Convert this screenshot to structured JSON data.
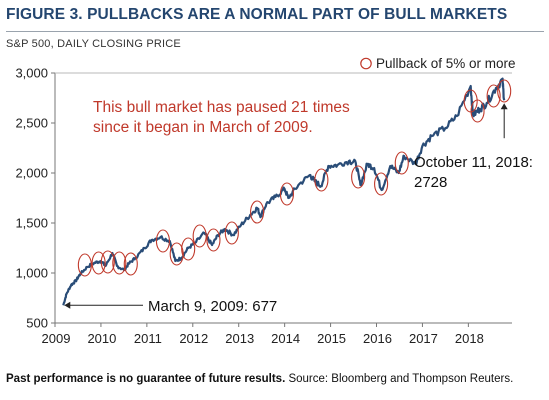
{
  "title": "FIGURE 3. PULLBACKS ARE A NORMAL PART OF BULL MARKETS",
  "subtitle": "S&P 500, DAILY CLOSING PRICE",
  "legend": {
    "label": "Pullback of 5% or more",
    "marker": "circle-outline"
  },
  "footer": {
    "disclaimer": "Past performance is no guarantee of future results.",
    "source": "Source: Bloomberg and Thompson Reuters."
  },
  "colors": {
    "title": "#24466f",
    "line": "#2a4d78",
    "annotation": "#c0392b",
    "marker": "#c0392b"
  },
  "chart_data": {
    "type": "line",
    "title": "FIGURE 3. PULLBACKS ARE A NORMAL PART OF BULL MARKETS",
    "ylabel": "S&P 500, DAILY CLOSING PRICE",
    "xlabel": "",
    "ylim": [
      500,
      3000
    ],
    "yticks": [
      500,
      1000,
      1500,
      2000,
      2500,
      3000
    ],
    "ytick_labels": [
      "500",
      "1,000",
      "1,500",
      "2,000",
      "2,500",
      "3,000"
    ],
    "xlim": [
      2009.0,
      2018.95
    ],
    "xticks": [
      2009,
      2010,
      2011,
      2012,
      2013,
      2014,
      2015,
      2016,
      2017,
      2018
    ],
    "xtick_labels": [
      "2009",
      "2010",
      "2011",
      "2012",
      "2013",
      "2014",
      "2015",
      "2016",
      "2017",
      "2018"
    ],
    "grid": false,
    "legend_position": "top-right",
    "series": [
      {
        "points": [
          [
            2009.18,
            677
          ],
          [
            2009.25,
            790
          ],
          [
            2009.35,
            880
          ],
          [
            2009.45,
            920
          ],
          [
            2009.55,
            990
          ],
          [
            2009.7,
            1060
          ],
          [
            2009.85,
            1100
          ],
          [
            2010.0,
            1120
          ],
          [
            2010.1,
            1070
          ],
          [
            2010.25,
            1200
          ],
          [
            2010.35,
            1070
          ],
          [
            2010.5,
            1030
          ],
          [
            2010.6,
            1090
          ],
          [
            2010.75,
            1150
          ],
          [
            2010.95,
            1250
          ],
          [
            2011.1,
            1330
          ],
          [
            2011.3,
            1360
          ],
          [
            2011.5,
            1320
          ],
          [
            2011.62,
            1120
          ],
          [
            2011.75,
            1150
          ],
          [
            2011.9,
            1250
          ],
          [
            2012.05,
            1300
          ],
          [
            2012.25,
            1400
          ],
          [
            2012.42,
            1280
          ],
          [
            2012.55,
            1380
          ],
          [
            2012.7,
            1440
          ],
          [
            2012.88,
            1380
          ],
          [
            2013.05,
            1480
          ],
          [
            2013.25,
            1580
          ],
          [
            2013.4,
            1650
          ],
          [
            2013.48,
            1570
          ],
          [
            2013.6,
            1690
          ],
          [
            2013.8,
            1760
          ],
          [
            2014.0,
            1840
          ],
          [
            2014.08,
            1750
          ],
          [
            2014.3,
            1880
          ],
          [
            2014.55,
            1980
          ],
          [
            2014.65,
            1920
          ],
          [
            2014.79,
            1870
          ],
          [
            2014.95,
            2070
          ],
          [
            2015.15,
            2080
          ],
          [
            2015.4,
            2120
          ],
          [
            2015.55,
            2100
          ],
          [
            2015.65,
            1880
          ],
          [
            2015.8,
            2090
          ],
          [
            2015.95,
            2050
          ],
          [
            2016.11,
            1830
          ],
          [
            2016.3,
            2070
          ],
          [
            2016.48,
            2000
          ],
          [
            2016.6,
            2170
          ],
          [
            2016.85,
            2090
          ],
          [
            2017.0,
            2270
          ],
          [
            2017.2,
            2370
          ],
          [
            2017.5,
            2450
          ],
          [
            2017.75,
            2570
          ],
          [
            2018.05,
            2870
          ],
          [
            2018.1,
            2580
          ],
          [
            2018.25,
            2640
          ],
          [
            2018.4,
            2700
          ],
          [
            2018.6,
            2850
          ],
          [
            2018.74,
            2930
          ],
          [
            2018.78,
            2728
          ]
        ]
      }
    ],
    "pullback_markers": [
      [
        2009.65,
        1080
      ],
      [
        2009.95,
        1100
      ],
      [
        2010.15,
        1110
      ],
      [
        2010.4,
        1100
      ],
      [
        2010.65,
        1090
      ],
      [
        2011.35,
        1320
      ],
      [
        2011.65,
        1190
      ],
      [
        2011.9,
        1240
      ],
      [
        2012.15,
        1370
      ],
      [
        2012.45,
        1330
      ],
      [
        2012.85,
        1400
      ],
      [
        2013.4,
        1610
      ],
      [
        2014.05,
        1790
      ],
      [
        2014.8,
        1930
      ],
      [
        2015.6,
        1960
      ],
      [
        2016.1,
        1890
      ],
      [
        2016.55,
        2100
      ],
      [
        2018.05,
        2720
      ],
      [
        2018.2,
        2620
      ],
      [
        2018.55,
        2770
      ],
      [
        2018.78,
        2820
      ]
    ],
    "annotations": [
      {
        "text_lines": [
          "This bull market has paused 21 times",
          "since it began in March of 2009."
        ]
      },
      {
        "text": "March 9, 2009: 677",
        "x": 2009.18,
        "y": 677
      },
      {
        "text_lines": [
          "October 11, 2018:",
          "2728"
        ],
        "x": 2018.78,
        "y": 2728
      }
    ]
  }
}
